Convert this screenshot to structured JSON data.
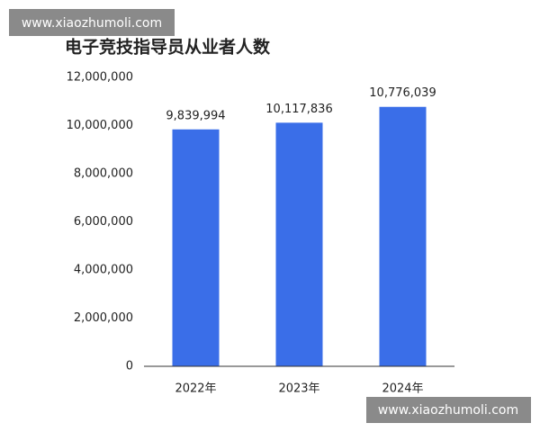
{
  "chart_data": {
    "type": "bar",
    "title": "电子竞技指导员从业者人数",
    "categories": [
      "2022年",
      "2023年",
      "2024年"
    ],
    "values": [
      9839994,
      10117836,
      10776039
    ],
    "value_labels": [
      "9,839,994",
      "10,117,836",
      "10,776,039"
    ],
    "color": "#3a6ee8",
    "label_color": "#4a6fa8",
    "ylim": [
      0,
      12000000
    ],
    "yticks": [
      0,
      {
        "value": 2000000,
        "label": "2,000,000"
      },
      {
        "value": 4000000,
        "label": "4,000,000"
      },
      {
        "value": 6000000,
        "label": "6,000,000"
      },
      {
        "value": 8000000,
        "label": "8,000,000"
      },
      {
        "value": 10000000,
        "label": "10,000,000"
      },
      {
        "value": 12000000,
        "label": "12,000,000"
      }
    ],
    "grid": false
  },
  "watermarks": [
    "www.xiaozhumoli.com",
    "www.xiaozhumoli.com"
  ]
}
